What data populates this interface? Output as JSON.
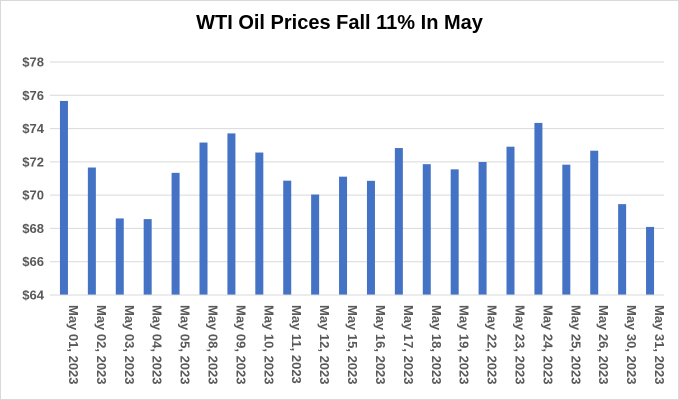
{
  "chart_data": {
    "type": "bar",
    "title": "WTI Oil Prices Fall 11% In May",
    "xlabel": "",
    "ylabel": "",
    "ylim": [
      64,
      78
    ],
    "y_tick_step": 2,
    "y_tick_prefix": "$",
    "grid": "horizontal",
    "legend": "none",
    "bar_color": "#4472C4",
    "categories": [
      "May 01, 2023",
      "May 02, 2023",
      "May 03, 2023",
      "May 04, 2023",
      "May 05, 2023",
      "May 08, 2023",
      "May 09, 2023",
      "May 10, 2023",
      "May 11, 2023",
      "May 12, 2023",
      "May 15, 2023",
      "May 16, 2023",
      "May 17, 2023",
      "May 18, 2023",
      "May 19, 2023",
      "May 22, 2023",
      "May 23, 2023",
      "May 24, 2023",
      "May 25, 2023",
      "May 26, 2023",
      "May 30, 2023",
      "May 31, 2023"
    ],
    "values": [
      75.66,
      71.66,
      68.6,
      68.56,
      71.34,
      73.16,
      73.71,
      72.56,
      70.87,
      70.04,
      71.11,
      70.86,
      72.83,
      71.86,
      71.55,
      71.99,
      72.91,
      74.34,
      71.83,
      72.67,
      69.46,
      68.09
    ]
  }
}
